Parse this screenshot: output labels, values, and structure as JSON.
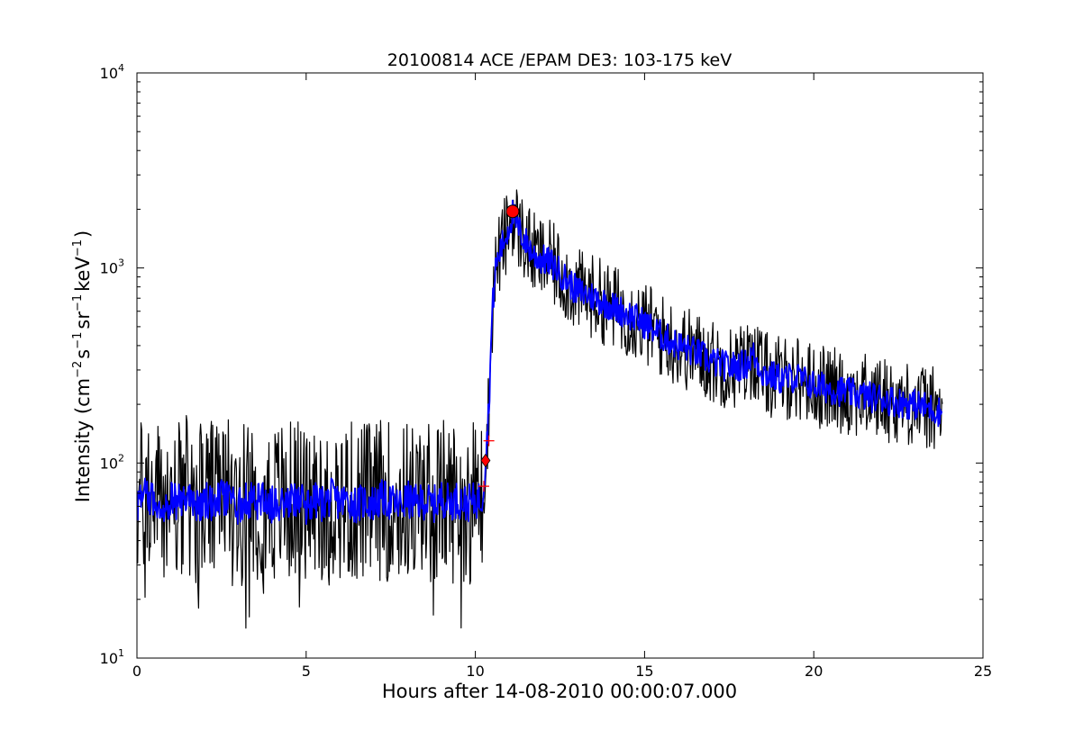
{
  "chart_data": {
    "type": "line",
    "title": "20100814 ACE /EPAM DE3: 103-175 keV",
    "xlabel": "Hours after 14-08-2010 00:00:07.000",
    "ylabel": {
      "prefix": "Intensity (cm",
      "cm_exp": "−2",
      "s": "s",
      "s_exp": "−1",
      "sr": "sr",
      "sr_exp": "−1",
      "kev": "keV",
      "kev_exp": "−1",
      "suffix": ")"
    },
    "x_range": [
      0,
      25
    ],
    "y_range": [
      10,
      10000
    ],
    "y_scale": "log",
    "x_ticks": [
      0,
      5,
      10,
      15,
      20,
      25
    ],
    "x_tick_labels": [
      "0",
      "5",
      "10",
      "15",
      "20",
      "25"
    ],
    "y_ticks": [
      10,
      100,
      1000,
      10000
    ],
    "y_tick_labels": [
      {
        "base": "10",
        "exp": "1"
      },
      {
        "base": "10",
        "exp": "2"
      },
      {
        "base": "10",
        "exp": "3"
      },
      {
        "base": "10",
        "exp": "4"
      }
    ],
    "grid": false,
    "series": [
      {
        "color": "#000000",
        "points": [
          [
            0,
            62
          ],
          [
            0.25,
            68
          ],
          [
            0.5,
            65
          ],
          [
            0.75,
            60
          ],
          [
            1,
            66
          ],
          [
            1.25,
            63
          ],
          [
            1.5,
            67
          ],
          [
            1.75,
            61
          ],
          [
            2,
            64
          ],
          [
            2.25,
            62
          ],
          [
            2.5,
            66
          ],
          [
            2.75,
            63
          ],
          [
            3,
            60
          ],
          [
            3.25,
            65
          ],
          [
            3.5,
            62
          ],
          [
            3.75,
            67
          ],
          [
            4,
            61
          ],
          [
            4.25,
            64
          ],
          [
            4.5,
            63
          ],
          [
            4.75,
            66
          ],
          [
            5,
            60
          ],
          [
            5.25,
            64
          ],
          [
            5.5,
            62
          ],
          [
            5.75,
            67
          ],
          [
            6,
            63
          ],
          [
            6.25,
            65
          ],
          [
            6.5,
            61
          ],
          [
            6.75,
            64
          ],
          [
            7,
            62
          ],
          [
            7.25,
            66
          ],
          [
            7.5,
            63
          ],
          [
            7.75,
            60
          ],
          [
            8,
            65
          ],
          [
            8.25,
            62
          ],
          [
            8.5,
            64
          ],
          [
            8.75,
            61
          ],
          [
            9,
            66
          ],
          [
            9.25,
            63
          ],
          [
            9.5,
            65
          ],
          [
            9.75,
            62
          ],
          [
            10,
            64
          ],
          [
            10.2,
            66
          ],
          [
            10.3,
            100
          ],
          [
            10.4,
            200
          ],
          [
            10.5,
            600
          ],
          [
            10.6,
            1000
          ],
          [
            10.75,
            1250
          ],
          [
            10.9,
            1450
          ],
          [
            11,
            1650
          ],
          [
            11.1,
            1900
          ],
          [
            11.25,
            1600
          ],
          [
            11.5,
            1350
          ],
          [
            11.75,
            1150
          ],
          [
            12,
            1100
          ],
          [
            12.25,
            1050
          ],
          [
            12.5,
            950
          ],
          [
            13,
            760
          ],
          [
            13.5,
            710
          ],
          [
            14,
            640
          ],
          [
            14.5,
            580
          ],
          [
            15,
            520
          ],
          [
            15.5,
            450
          ],
          [
            16,
            400
          ],
          [
            16.5,
            370
          ],
          [
            17,
            330
          ],
          [
            17.5,
            310
          ],
          [
            18,
            320
          ],
          [
            18.2,
            360
          ],
          [
            18.5,
            290
          ],
          [
            19,
            270
          ],
          [
            19.5,
            275
          ],
          [
            20,
            250
          ],
          [
            20.5,
            240
          ],
          [
            21,
            230
          ],
          [
            21.5,
            220
          ],
          [
            22,
            215
          ],
          [
            22.5,
            205
          ],
          [
            23,
            200
          ],
          [
            23.5,
            190
          ],
          [
            23.8,
            180
          ]
        ],
        "noise": {
          "baseline_hours": [
            0,
            10.2
          ],
          "baseline_min": 13,
          "baseline_max": 128,
          "decay_spread": 0.22
        }
      },
      {
        "color": "#0000ff",
        "points": [
          [
            0,
            62
          ],
          [
            0.25,
            68
          ],
          [
            0.5,
            65
          ],
          [
            0.75,
            60
          ],
          [
            1,
            66
          ],
          [
            1.25,
            63
          ],
          [
            1.5,
            67
          ],
          [
            1.75,
            61
          ],
          [
            2,
            64
          ],
          [
            2.25,
            62
          ],
          [
            2.5,
            66
          ],
          [
            2.75,
            63
          ],
          [
            3,
            60
          ],
          [
            3.25,
            65
          ],
          [
            3.5,
            62
          ],
          [
            3.75,
            67
          ],
          [
            4,
            61
          ],
          [
            4.25,
            64
          ],
          [
            4.5,
            63
          ],
          [
            4.75,
            66
          ],
          [
            5,
            60
          ],
          [
            5.25,
            64
          ],
          [
            5.5,
            62
          ],
          [
            5.75,
            67
          ],
          [
            6,
            63
          ],
          [
            6.25,
            65
          ],
          [
            6.5,
            61
          ],
          [
            6.75,
            64
          ],
          [
            7,
            62
          ],
          [
            7.25,
            66
          ],
          [
            7.5,
            63
          ],
          [
            7.75,
            60
          ],
          [
            8,
            65
          ],
          [
            8.25,
            62
          ],
          [
            8.5,
            64
          ],
          [
            8.75,
            61
          ],
          [
            9,
            66
          ],
          [
            9.25,
            63
          ],
          [
            9.5,
            65
          ],
          [
            9.75,
            62
          ],
          [
            10,
            64
          ],
          [
            10.2,
            66
          ],
          [
            10.3,
            100
          ],
          [
            10.4,
            200
          ],
          [
            10.5,
            600
          ],
          [
            10.6,
            1000
          ],
          [
            10.75,
            1250
          ],
          [
            10.9,
            1450
          ],
          [
            11,
            1650
          ],
          [
            11.1,
            1900
          ],
          [
            11.25,
            1600
          ],
          [
            11.5,
            1350
          ],
          [
            11.75,
            1150
          ],
          [
            12,
            1100
          ],
          [
            12.25,
            1050
          ],
          [
            12.5,
            950
          ],
          [
            13,
            760
          ],
          [
            13.5,
            710
          ],
          [
            14,
            640
          ],
          [
            14.5,
            580
          ],
          [
            15,
            520
          ],
          [
            15.5,
            450
          ],
          [
            16,
            400
          ],
          [
            16.5,
            370
          ],
          [
            17,
            330
          ],
          [
            17.5,
            310
          ],
          [
            18,
            320
          ],
          [
            18.2,
            360
          ],
          [
            18.5,
            290
          ],
          [
            19,
            270
          ],
          [
            19.5,
            275
          ],
          [
            20,
            250
          ],
          [
            20.5,
            240
          ],
          [
            21,
            230
          ],
          [
            21.5,
            220
          ],
          [
            22,
            215
          ],
          [
            22.5,
            205
          ],
          [
            23,
            200
          ],
          [
            23.5,
            190
          ],
          [
            23.8,
            180
          ]
        ],
        "noise": {
          "baseline_hours": [
            0,
            10.2
          ],
          "baseline_min": 40,
          "baseline_max": 90,
          "decay_spread": 0.08
        }
      }
    ],
    "markers": [
      {
        "shape": "circle",
        "color": "#ff0000",
        "x": 11.1,
        "y": 1950
      },
      {
        "shape": "diamond",
        "color": "#ff0000",
        "x": 10.3,
        "y": 103
      },
      {
        "shape": "plus",
        "color": "#ff0000",
        "x": 10.4,
        "y": 130
      },
      {
        "shape": "plus",
        "color": "#ff0000",
        "x": 10.25,
        "y": 76
      }
    ]
  }
}
